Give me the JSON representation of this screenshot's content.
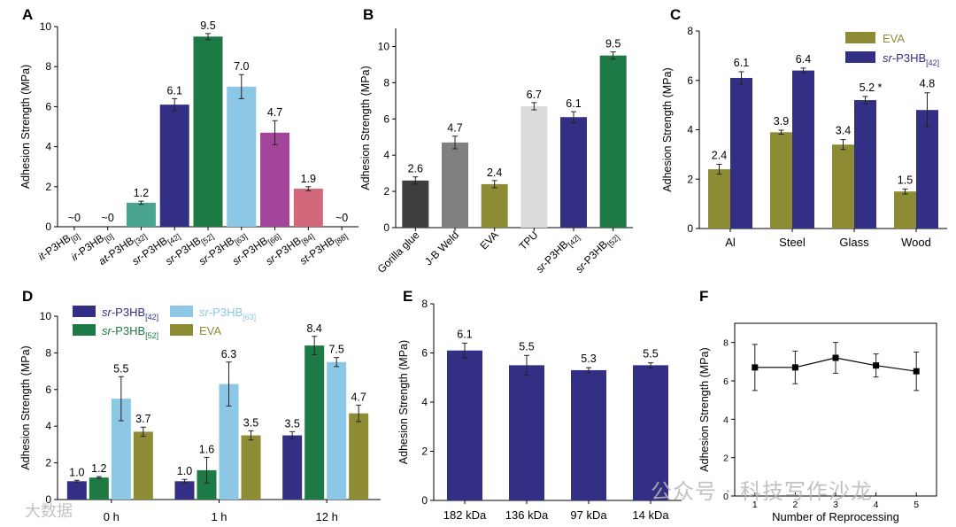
{
  "colors": {
    "purple": "#322F85",
    "teal": "#4AA58E",
    "green": "#1E7A45",
    "lightblue": "#8DC7E6",
    "magenta": "#A3449B",
    "pink": "#D0677A",
    "olive": "#8E8B35",
    "darkgray": "#3E3E3E",
    "gray": "#808080",
    "lightgray": "#DCDCDC"
  },
  "watermarks": {
    "right": "公众号 · 科技写作沙龙",
    "left": "大数据"
  },
  "chart_data": [
    {
      "id": "A",
      "panel_label": "A",
      "type": "bar",
      "ylabel": "Adhesion Strength (MPa)",
      "ylim": [
        0,
        10
      ],
      "yticks": [
        0,
        2,
        4,
        6,
        8,
        10
      ],
      "bars": [
        {
          "sa": "it",
          "sb": "-P3HB",
          "sub": "[0]",
          "value": 0,
          "err": 0,
          "label": "~0",
          "color": "none"
        },
        {
          "sa": "ir",
          "sb": "-P3HB",
          "sub": "[0]",
          "value": 0,
          "err": 0,
          "label": "~0",
          "color": "none"
        },
        {
          "sa": "at",
          "sb": "-P3HB",
          "sub": "[32]",
          "value": 1.2,
          "err": 0.08,
          "label": "1.2",
          "color": "teal"
        },
        {
          "sa": "sr",
          "sb": "-P3HB",
          "sub": "[42]",
          "value": 6.1,
          "err": 0.3,
          "label": "6.1",
          "color": "purple"
        },
        {
          "sa": "sr",
          "sb": "-P3HB",
          "sub": "[52]",
          "value": 9.5,
          "err": 0.15,
          "label": "9.5",
          "color": "green"
        },
        {
          "sa": "sr",
          "sb": "-P3HB",
          "sub": "[63]",
          "value": 7.0,
          "err": 0.6,
          "label": "7.0",
          "color": "lightblue"
        },
        {
          "sa": "sr",
          "sb": "-P3HB",
          "sub": "[66]",
          "value": 4.7,
          "err": 0.6,
          "label": "4.7",
          "color": "magenta"
        },
        {
          "sa": "sr",
          "sb": "-P3HB",
          "sub": "[84]",
          "value": 1.9,
          "err": 0.1,
          "label": "1.9",
          "color": "pink"
        },
        {
          "sa": "st",
          "sb": "-P3HB",
          "sub": "[88]",
          "value": 0,
          "err": 0,
          "label": "~0",
          "color": "none"
        }
      ]
    },
    {
      "id": "B",
      "panel_label": "B",
      "type": "bar",
      "ylabel": "Adhesion Strength (MPa)",
      "ylim": [
        0,
        11
      ],
      "yticks": [
        0,
        2,
        4,
        6,
        8,
        10
      ],
      "bars": [
        {
          "sa": "",
          "sb": "Gorilla glue",
          "sub": "",
          "value": 2.6,
          "err": 0.2,
          "label": "2.6",
          "color": "darkgray"
        },
        {
          "sa": "",
          "sb": "J-B Weld",
          "sub": "",
          "value": 4.7,
          "err": 0.35,
          "label": "4.7",
          "color": "gray"
        },
        {
          "sa": "",
          "sb": "EVA",
          "sub": "",
          "value": 2.4,
          "err": 0.2,
          "label": "2.4",
          "color": "olive"
        },
        {
          "sa": "",
          "sb": "TPU",
          "sub": "",
          "value": 6.7,
          "err": 0.2,
          "label": "6.7",
          "color": "lightgray"
        },
        {
          "sa": "sr",
          "sb": "-P3HB",
          "sub": "[42]",
          "value": 6.1,
          "err": 0.3,
          "label": "6.1",
          "color": "purple"
        },
        {
          "sa": "sr",
          "sb": "-P3HB",
          "sub": "[52]",
          "value": 9.5,
          "err": 0.2,
          "label": "9.5",
          "color": "green"
        }
      ]
    },
    {
      "id": "C",
      "panel_label": "C",
      "type": "bar",
      "ylabel": "Adhesion Strength (MPa)",
      "ylim": [
        0,
        8
      ],
      "yticks": [
        0,
        2,
        4,
        6,
        8
      ],
      "categories": [
        "Al",
        "Steel",
        "Glass",
        "Wood"
      ],
      "legend": [
        {
          "sa": "",
          "sb": "EVA",
          "sub": "",
          "color": "olive",
          "text_color": "olive"
        },
        {
          "sa": "sr",
          "sb": "-P3HB",
          "sub": "[42]",
          "color": "purple",
          "text_color": "purple"
        }
      ],
      "series": [
        {
          "color": "olive",
          "values": [
            2.4,
            3.9,
            3.4,
            1.5
          ],
          "errs": [
            0.2,
            0.08,
            0.2,
            0.1
          ],
          "labels": [
            "2.4",
            "3.9",
            "3.4",
            "1.5"
          ]
        },
        {
          "color": "purple",
          "values": [
            6.1,
            6.4,
            5.2,
            4.8
          ],
          "errs": [
            0.25,
            0.1,
            0.15,
            0.7
          ],
          "labels": [
            "6.1",
            "6.4",
            "5.2 *",
            "4.8"
          ]
        }
      ]
    },
    {
      "id": "D",
      "panel_label": "D",
      "type": "bar",
      "ylabel": "Adhesion Strength (MPa)",
      "ylim": [
        0,
        10
      ],
      "yticks": [
        0,
        2,
        4,
        6,
        8,
        10
      ],
      "categories": [
        "0 h",
        "1 h",
        "12 h"
      ],
      "legend": [
        {
          "sa": "sr",
          "sb": "-P3HB",
          "sub": "[42]",
          "color": "purple",
          "text_color": "purple"
        },
        {
          "sa": "sr",
          "sb": "-P3HB",
          "sub": "[63]",
          "color": "lightblue",
          "text_color": "lightblue"
        },
        {
          "sa": "sr",
          "sb": "-P3HB",
          "sub": "[52]",
          "color": "green",
          "text_color": "green"
        },
        {
          "sa": "",
          "sb": "EVA",
          "sub": "",
          "color": "olive",
          "text_color": "olive"
        }
      ],
      "series": [
        {
          "color": "purple",
          "values": [
            1.0,
            1.0,
            3.5
          ],
          "errs": [
            0.05,
            0.1,
            0.2
          ],
          "labels": [
            "1.0",
            "1.0",
            "3.5"
          ]
        },
        {
          "color": "green",
          "values": [
            1.2,
            1.6,
            8.4
          ],
          "errs": [
            0.05,
            0.7,
            0.5
          ],
          "labels": [
            "1.2",
            "1.6",
            "8.4"
          ]
        },
        {
          "color": "lightblue",
          "values": [
            5.5,
            6.3,
            7.5
          ],
          "errs": [
            1.2,
            1.2,
            0.25
          ],
          "labels": [
            "5.5",
            "6.3",
            "7.5"
          ]
        },
        {
          "color": "olive",
          "values": [
            3.7,
            3.5,
            4.7
          ],
          "errs": [
            0.25,
            0.25,
            0.45
          ],
          "labels": [
            "3.7",
            "3.5",
            "4.7"
          ]
        }
      ]
    },
    {
      "id": "E",
      "panel_label": "E",
      "type": "bar",
      "ylabel": "Adhesion Strength (MPa)",
      "ylim": [
        0,
        8
      ],
      "yticks": [
        0,
        2,
        4,
        6,
        8
      ],
      "bars": [
        {
          "sa": "",
          "sb": "182 kDa",
          "sub": "",
          "value": 6.1,
          "err": 0.3,
          "label": "6.1",
          "color": "purple"
        },
        {
          "sa": "",
          "sb": "136 kDa",
          "sub": "",
          "value": 5.5,
          "err": 0.4,
          "label": "5.5",
          "color": "purple"
        },
        {
          "sa": "",
          "sb": "97 kDa",
          "sub": "",
          "value": 5.3,
          "err": 0.1,
          "label": "5.3",
          "color": "purple"
        },
        {
          "sa": "",
          "sb": "14 kDa",
          "sub": "",
          "value": 5.5,
          "err": 0.1,
          "label": "5.5",
          "color": "purple"
        }
      ]
    },
    {
      "id": "F",
      "panel_label": "F",
      "type": "line",
      "ylabel": "Adhesion Strength (MPa)",
      "xlabel": "Number of Reprocessing",
      "xlim": [
        0.5,
        5.5
      ],
      "ylim": [
        0,
        9
      ],
      "yticks": [
        0,
        2,
        4,
        6,
        8
      ],
      "xticks": [
        1,
        2,
        3,
        4,
        5
      ],
      "x": [
        1,
        2,
        3,
        4,
        5
      ],
      "y": [
        6.7,
        6.7,
        7.2,
        6.8,
        6.5
      ],
      "errs": [
        1.2,
        0.85,
        0.8,
        0.6,
        1.0
      ]
    }
  ]
}
